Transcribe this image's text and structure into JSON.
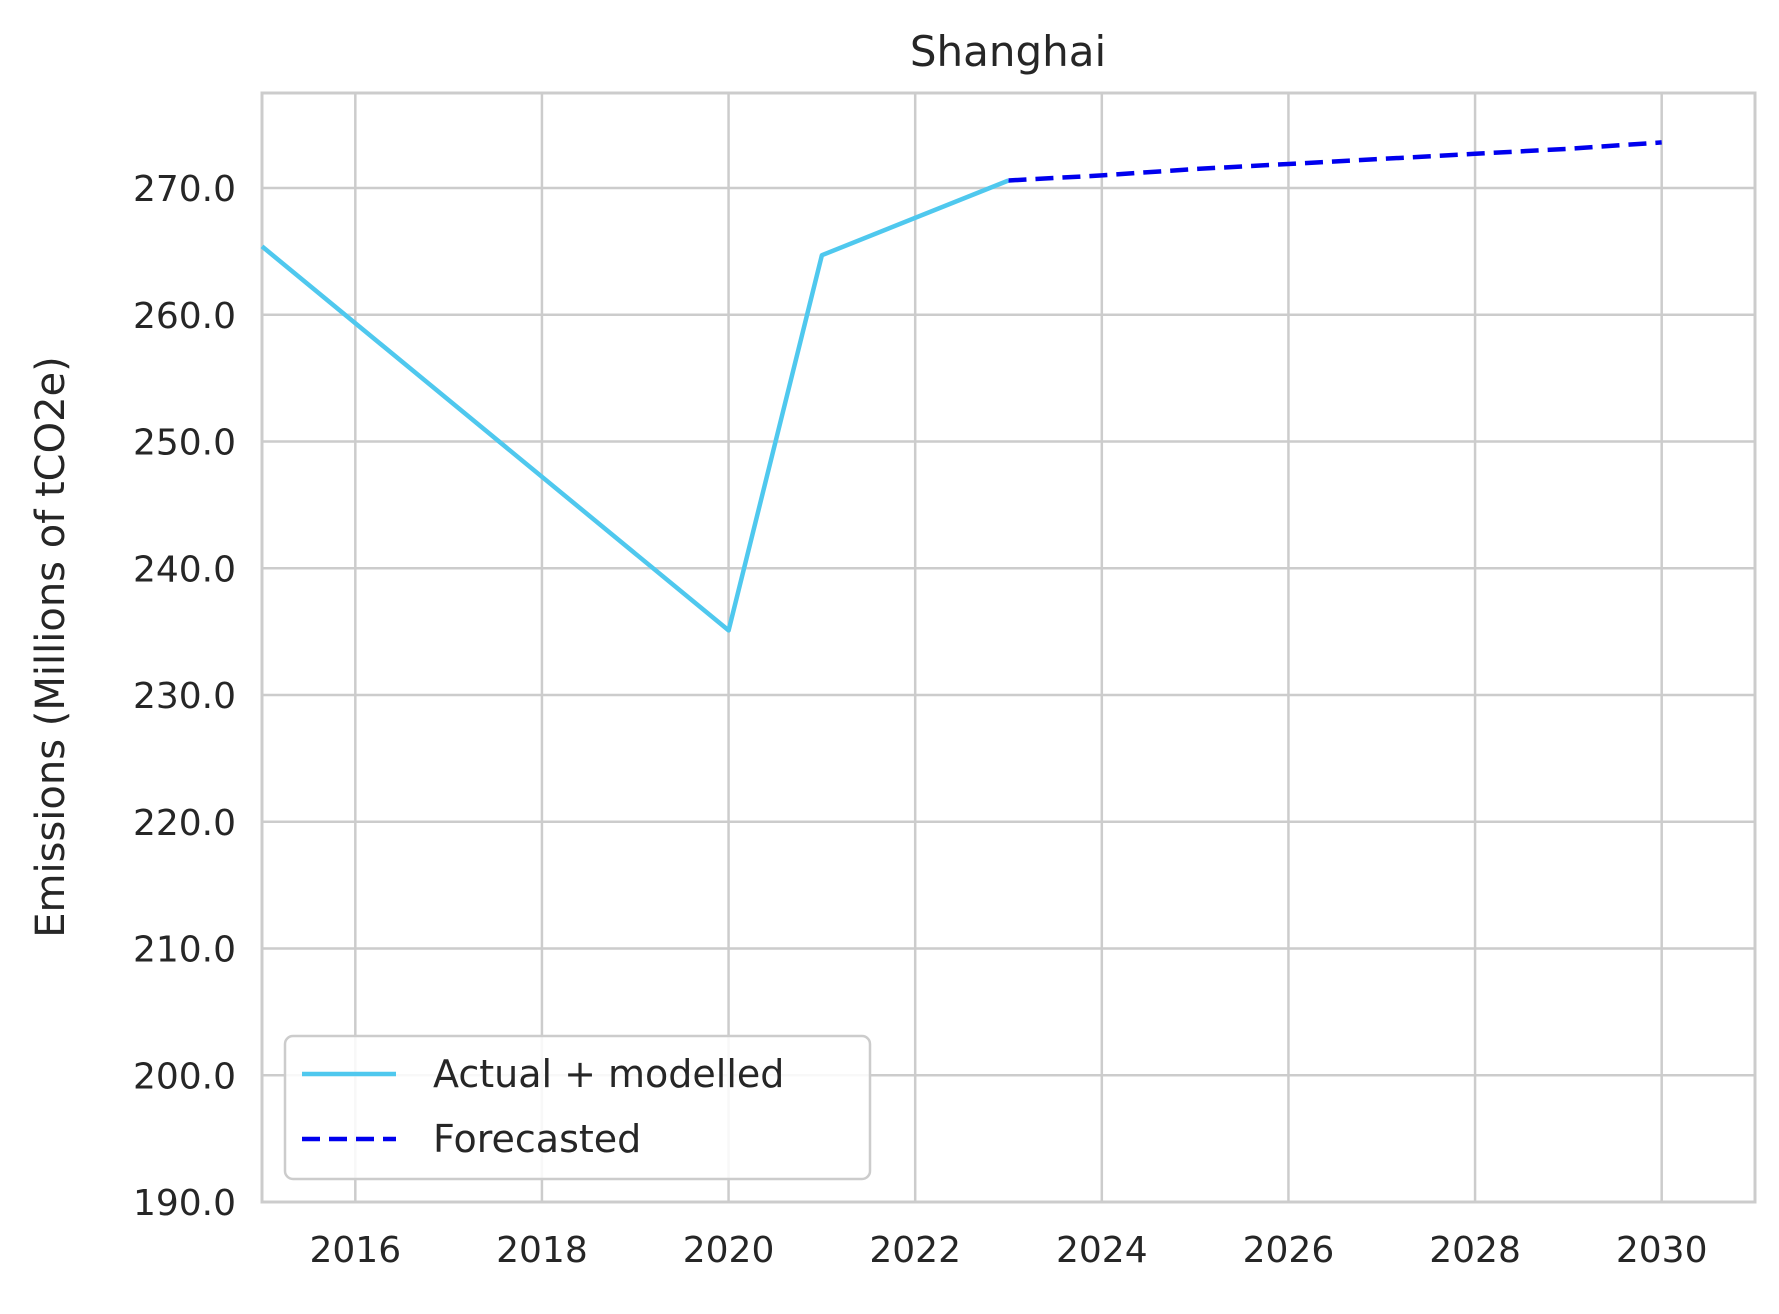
{
  "chart_data": {
    "type": "line",
    "title": "Shanghai",
    "xlabel": "",
    "ylabel": "Emissions (Millions of tCO2e)",
    "xlim": [
      2015,
      2031
    ],
    "ylim": [
      190,
      277.5
    ],
    "x_ticks": [
      "2016",
      "2018",
      "2020",
      "2022",
      "2024",
      "2026",
      "2028",
      "2030"
    ],
    "y_ticks": [
      "190.0",
      "200.0",
      "210.0",
      "220.0",
      "230.0",
      "240.0",
      "250.0",
      "260.0",
      "270.0"
    ],
    "grid": true,
    "legend_position": "lower-left",
    "series": [
      {
        "name": "Actual + modelled",
        "style": "solid",
        "color": "#4fc8ee",
        "x": [
          2015,
          2020,
          2021,
          2023
        ],
        "y": [
          265.4,
          235.1,
          264.7,
          270.6
        ]
      },
      {
        "name": "Forecasted",
        "style": "dashed",
        "color": "#0000ee",
        "x": [
          2023,
          2024,
          2025,
          2026,
          2027,
          2028,
          2029,
          2030
        ],
        "y": [
          270.6,
          271.0,
          271.5,
          271.9,
          272.3,
          272.7,
          273.1,
          273.6
        ]
      }
    ]
  }
}
